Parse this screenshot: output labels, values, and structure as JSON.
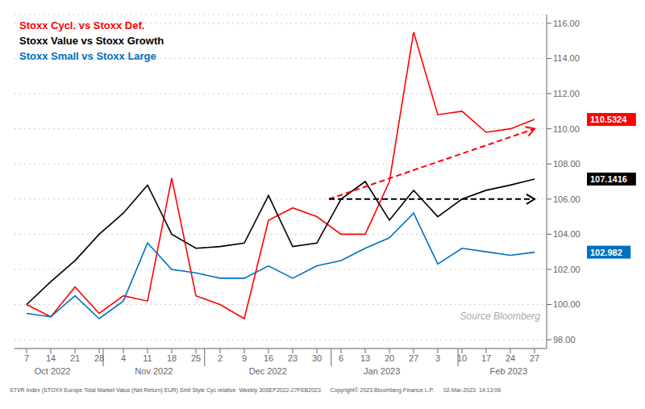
{
  "chart_data": {
    "type": "line",
    "categories": [
      "7",
      "14",
      "21",
      "28",
      "4",
      "11",
      "18",
      "25",
      "2",
      "9",
      "16",
      "23",
      "30",
      "6",
      "13",
      "20",
      "27",
      "3",
      "10",
      "17",
      "24",
      "27"
    ],
    "series": [
      {
        "name": "Stoxx Cycl. vs Stoxx Def.",
        "color": "#FF0000",
        "values": [
          100.0,
          99.3,
          101.0,
          99.5,
          100.5,
          100.2,
          107.2,
          100.5,
          100.0,
          99.2,
          104.8,
          105.5,
          105.0,
          104.0,
          104.0,
          107.0,
          115.5,
          110.8,
          111.0,
          109.8,
          110.0,
          110.53
        ],
        "end_label": "110.5324"
      },
      {
        "name": "Stoxx Value vs Stoxx Growth",
        "color": "#000000",
        "values": [
          100.0,
          101.3,
          102.5,
          104.0,
          105.2,
          106.8,
          104.0,
          103.2,
          103.3,
          103.5,
          106.2,
          103.3,
          103.5,
          106.0,
          107.0,
          104.8,
          106.5,
          105.0,
          106.0,
          106.5,
          106.8,
          107.14
        ],
        "end_label": "107.1416"
      },
      {
        "name": "Stoxx Small vs Stoxx Large",
        "color": "#0070C0",
        "values": [
          99.5,
          99.3,
          100.5,
          99.2,
          100.2,
          103.5,
          102.0,
          101.8,
          101.5,
          101.5,
          102.2,
          101.5,
          102.2,
          102.5,
          103.2,
          103.8,
          105.2,
          102.3,
          103.2,
          103.0,
          102.8,
          102.98
        ],
        "end_label": "102.982"
      }
    ],
    "ylim": [
      97.5,
      116.5
    ],
    "yticks": [
      {
        "value": 98.0,
        "label": "98.00"
      },
      {
        "value": 100.0,
        "label": "100.00"
      },
      {
        "value": 102.0,
        "label": "102.00"
      },
      {
        "value": 104.0,
        "label": "104.00"
      },
      {
        "value": 106.0,
        "label": "106.00"
      },
      {
        "value": 108.0,
        "label": "108.00"
      },
      {
        "value": 110.0,
        "label": "110.00"
      },
      {
        "value": 112.0,
        "label": "112.00"
      },
      {
        "value": 114.0,
        "label": "114.00"
      },
      {
        "value": 116.0,
        "label": "116.00"
      }
    ],
    "grid": true,
    "legend": "upper left",
    "annotations": [
      {
        "type": "arrow",
        "x": [
          12.5,
          21.0
        ],
        "y": [
          106.0,
          110.0
        ],
        "color": "#FF0000",
        "line_style": "dashed"
      },
      {
        "type": "arrow",
        "x": [
          12.5,
          21.0
        ],
        "y": [
          106.0,
          106.0
        ],
        "color": "#000000",
        "line_style": "dashed"
      }
    ],
    "month_labels": [
      {
        "label": "Oct 2022",
        "x": 1.5
      },
      {
        "label": "Nov 2022",
        "x": 5.5
      },
      {
        "label": "Dec 2022",
        "x": 10.0
      },
      {
        "label": "Jan 2023",
        "x": 14.5
      },
      {
        "label": "Feb 2023",
        "x": 19.5
      }
    ],
    "month_separators": [
      3.5,
      7.5,
      12.5,
      17.5
    ],
    "source": "Source Bloomberg",
    "footnote": "STVR Index (STOXX Europe Total Market Value (Net Return) EUR) Smll Style Cyc relative  Weekly 30SEP2022-27FEB2023      Copyright© 2023 Bloomberg Finance L.P.      02-Mar-2023  14:13:06"
  }
}
